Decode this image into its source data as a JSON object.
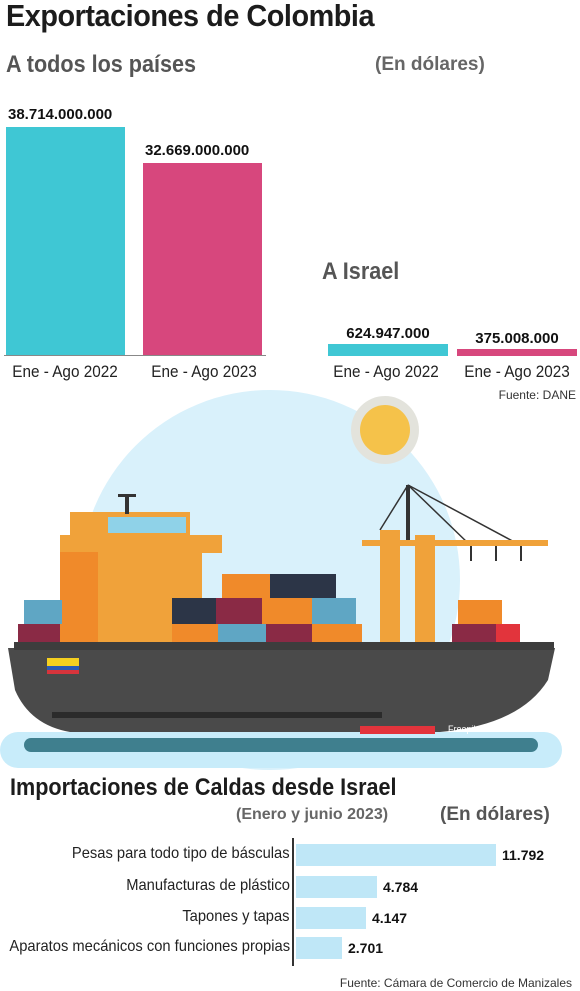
{
  "header": {
    "title": "Exportaciones de Colombia",
    "unit": "(En dólares)",
    "source": "Fuente: DANE"
  },
  "imports": {
    "title": "Importaciones de Caldas desde Israel",
    "period": "(Enero y junio 2023)",
    "unit": "(En dólares)",
    "source": "Fuente: Cámara de Comercio de Manizales",
    "credit": "Freepik"
  },
  "colors": {
    "cyan": "#3fc7d4",
    "magenta": "#d7477d",
    "light_blue": "#bfe7f7",
    "hull": "#4a4a4a"
  },
  "chart_data": [
    {
      "type": "bar",
      "title": "A todos los países",
      "categories": [
        "Ene - Ago 2022",
        "Ene - Ago 2023"
      ],
      "values": [
        38714000000,
        32669000000
      ],
      "value_labels": [
        "38.714.000.000",
        "32.669.000.000"
      ],
      "ylim": [
        0,
        38714000000
      ]
    },
    {
      "type": "bar",
      "title": "A Israel",
      "categories": [
        "Ene - Ago 2022",
        "Ene - Ago 2023"
      ],
      "values": [
        624947000,
        375008000
      ],
      "value_labels": [
        "624.947.000",
        "375.008.000"
      ]
    },
    {
      "type": "bar",
      "orientation": "horizontal",
      "categories": [
        "Pesas para todo tipo de básculas",
        "Manufacturas de plástico",
        "Tapones y tapas",
        "Aparatos mecánicos con funciones propias"
      ],
      "values": [
        11792,
        4784,
        4147,
        2701
      ],
      "value_labels": [
        "11.792",
        "4.784",
        "4.147",
        "2.701"
      ],
      "xlim": [
        0,
        11792
      ]
    }
  ]
}
